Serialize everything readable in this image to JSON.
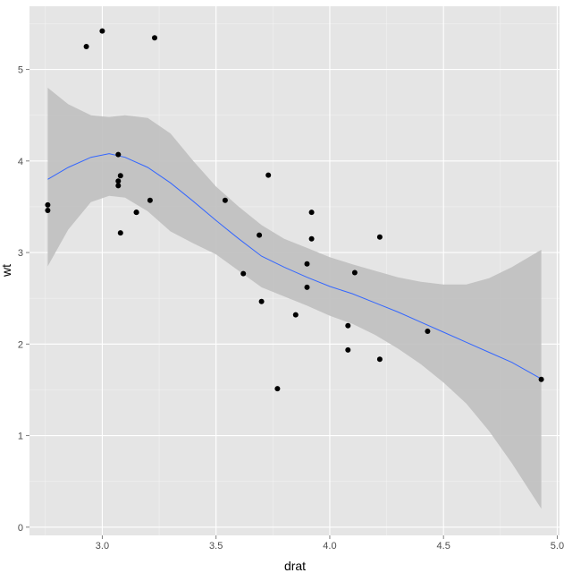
{
  "chart_data": {
    "type": "scatter",
    "title": "",
    "xlabel": "drat",
    "ylabel": "wt",
    "xlim": [
      2.68,
      5.01
    ],
    "ylim": [
      -0.09,
      5.69
    ],
    "x_ticks": [
      {
        "value": 3.0,
        "label": "3.0"
      },
      {
        "value": 3.5,
        "label": "3.5"
      },
      {
        "value": 4.0,
        "label": "4.0"
      },
      {
        "value": 4.5,
        "label": "4.5"
      },
      {
        "value": 5.0,
        "label": "5.0"
      }
    ],
    "y_ticks": [
      {
        "value": 0,
        "label": "0"
      },
      {
        "value": 1,
        "label": "1"
      },
      {
        "value": 2,
        "label": "2"
      },
      {
        "value": 3,
        "label": "3"
      },
      {
        "value": 4,
        "label": "4"
      },
      {
        "value": 5,
        "label": "5"
      }
    ],
    "grid": true,
    "background_color": "#e5e5e5",
    "grid_color": "#ffffff",
    "point_color": "#000000",
    "smooth_line_color": "#3366ff",
    "ribbon_color": "#bfbfbf",
    "points": [
      {
        "x": 2.76,
        "y": 3.46
      },
      {
        "x": 2.76,
        "y": 3.52
      },
      {
        "x": 2.93,
        "y": 5.25
      },
      {
        "x": 3.0,
        "y": 5.42
      },
      {
        "x": 3.07,
        "y": 4.07
      },
      {
        "x": 3.07,
        "y": 3.73
      },
      {
        "x": 3.07,
        "y": 3.78
      },
      {
        "x": 3.08,
        "y": 3.84
      },
      {
        "x": 3.08,
        "y": 3.215
      },
      {
        "x": 3.15,
        "y": 3.44
      },
      {
        "x": 3.15,
        "y": 3.44
      },
      {
        "x": 3.21,
        "y": 3.57
      },
      {
        "x": 3.23,
        "y": 5.345
      },
      {
        "x": 3.54,
        "y": 3.57
      },
      {
        "x": 3.62,
        "y": 2.77
      },
      {
        "x": 3.69,
        "y": 3.19
      },
      {
        "x": 3.7,
        "y": 2.465
      },
      {
        "x": 3.73,
        "y": 3.845
      },
      {
        "x": 3.77,
        "y": 1.513
      },
      {
        "x": 3.85,
        "y": 2.32
      },
      {
        "x": 3.9,
        "y": 2.875
      },
      {
        "x": 3.9,
        "y": 2.62
      },
      {
        "x": 3.92,
        "y": 3.44
      },
      {
        "x": 3.92,
        "y": 3.15
      },
      {
        "x": 4.08,
        "y": 2.2
      },
      {
        "x": 4.08,
        "y": 1.935
      },
      {
        "x": 4.11,
        "y": 2.78
      },
      {
        "x": 4.22,
        "y": 3.17
      },
      {
        "x": 4.22,
        "y": 1.835
      },
      {
        "x": 4.43,
        "y": 2.14
      },
      {
        "x": 4.93,
        "y": 1.615
      }
    ],
    "smooth": {
      "x": [
        2.76,
        2.85,
        2.95,
        3.03,
        3.1,
        3.2,
        3.3,
        3.4,
        3.5,
        3.6,
        3.7,
        3.8,
        3.9,
        4.0,
        4.1,
        4.2,
        4.3,
        4.4,
        4.5,
        4.6,
        4.7,
        4.8,
        4.93
      ],
      "y": [
        3.8,
        3.93,
        4.04,
        4.08,
        4.04,
        3.93,
        3.76,
        3.56,
        3.35,
        3.15,
        2.96,
        2.84,
        2.73,
        2.63,
        2.55,
        2.45,
        2.35,
        2.24,
        2.13,
        2.02,
        1.91,
        1.8,
        1.62
      ],
      "upper": [
        4.8,
        4.62,
        4.5,
        4.48,
        4.5,
        4.47,
        4.3,
        4.0,
        3.72,
        3.5,
        3.3,
        3.15,
        3.05,
        2.95,
        2.87,
        2.8,
        2.73,
        2.68,
        2.65,
        2.65,
        2.72,
        2.84,
        3.03
      ],
      "lower": [
        2.85,
        3.25,
        3.55,
        3.62,
        3.6,
        3.45,
        3.23,
        3.1,
        2.98,
        2.8,
        2.62,
        2.52,
        2.42,
        2.31,
        2.22,
        2.1,
        1.95,
        1.78,
        1.58,
        1.35,
        1.05,
        0.7,
        0.2
      ]
    }
  }
}
